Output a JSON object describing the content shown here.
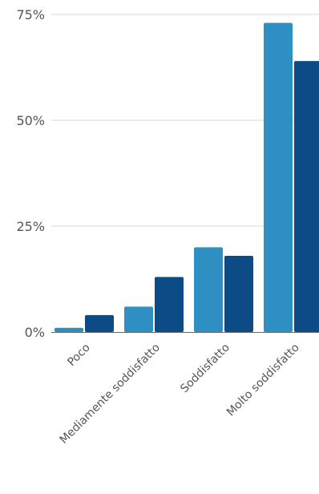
{
  "chart_data": {
    "type": "bar",
    "title": "",
    "xlabel": "",
    "ylabel": "",
    "categories": [
      "Poco",
      "Mediamente soddisfatto",
      "Soddisfatto",
      "Molto soddisfatto"
    ],
    "series": [
      {
        "values": [
          1,
          6,
          20,
          73
        ],
        "color": "#2f8fc2"
      },
      {
        "values": [
          4,
          13,
          18,
          64
        ],
        "color": "#0d4b86"
      }
    ],
    "ylim": [
      0,
      75
    ],
    "yticks": [
      0,
      25,
      50,
      75
    ],
    "ytick_labels": [
      "0%",
      "25%",
      "50%",
      "75%"
    ],
    "grid": true,
    "legend": "none"
  }
}
